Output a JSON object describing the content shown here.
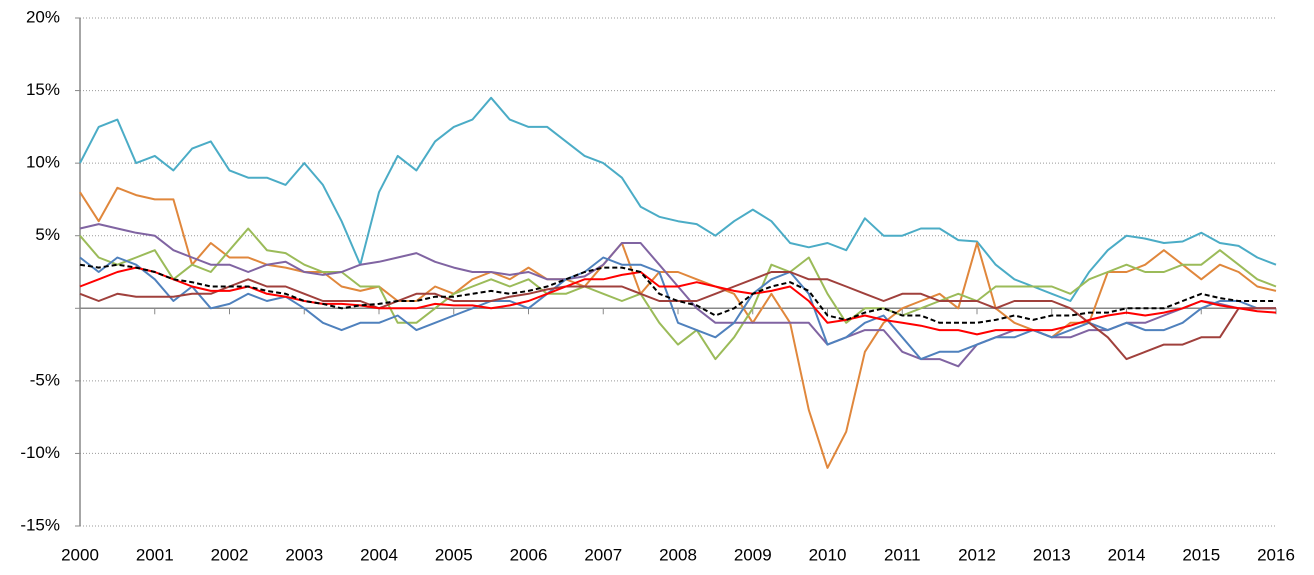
{
  "chart_data": {
    "type": "line",
    "x": [
      2000,
      2000.25,
      2000.5,
      2000.75,
      2001,
      2001.25,
      2001.5,
      2001.75,
      2002,
      2002.25,
      2002.5,
      2002.75,
      2003,
      2003.25,
      2003.5,
      2003.75,
      2004,
      2004.25,
      2004.5,
      2004.75,
      2005,
      2005.25,
      2005.5,
      2005.75,
      2006,
      2006.25,
      2006.5,
      2006.75,
      2007,
      2007.25,
      2007.5,
      2007.75,
      2008,
      2008.25,
      2008.5,
      2008.75,
      2009,
      2009.25,
      2009.5,
      2009.75,
      2010,
      2010.25,
      2010.5,
      2010.75,
      2011,
      2011.25,
      2011.5,
      2011.75,
      2012,
      2012.25,
      2012.5,
      2012.75,
      2013,
      2013.25,
      2013.5,
      2013.75,
      2014,
      2014.25,
      2014.5,
      2014.75,
      2015,
      2015.25,
      2015.5,
      2015.75,
      2016
    ],
    "xlim": [
      2000,
      2016
    ],
    "xticks": [
      2000,
      2001,
      2002,
      2003,
      2004,
      2005,
      2006,
      2007,
      2008,
      2009,
      2010,
      2011,
      2012,
      2013,
      2014,
      2015,
      2016
    ],
    "ylim": [
      -15,
      20
    ],
    "yticks": [
      {
        "value": -15,
        "label": "-15%"
      },
      {
        "value": -10,
        "label": "-10%"
      },
      {
        "value": -5,
        "label": "-5%"
      },
      {
        "value": 0,
        "label": ""
      },
      {
        "value": 5,
        "label": "5%"
      },
      {
        "value": 10,
        "label": "10%"
      },
      {
        "value": 15,
        "label": "15%"
      },
      {
        "value": 20,
        "label": "20%"
      }
    ],
    "grid": true,
    "series": [
      {
        "color": "#4bacc6",
        "values": [
          10,
          12.5,
          13,
          10,
          10.5,
          9.5,
          11,
          11.5,
          9.5,
          9,
          9,
          8.5,
          10,
          8.5,
          6,
          3,
          8,
          10.5,
          9.5,
          11.5,
          12.5,
          13,
          14.5,
          13,
          12.5,
          12.5,
          11.5,
          10.5,
          10,
          9,
          7,
          6.3,
          6,
          5.8,
          5,
          6,
          6.8,
          6,
          4.5,
          4.2,
          4.5,
          4,
          6.2,
          5,
          5,
          5.5,
          5.5,
          4.7,
          4.6,
          3,
          2,
          1.5,
          1,
          0.5,
          2.5,
          4,
          5,
          4.8,
          4.5,
          4.6,
          5.2,
          4.5,
          4.3,
          3.5,
          3
        ]
      },
      {
        "color": "#e0873c",
        "values": [
          8,
          6,
          8.3,
          7.8,
          7.5,
          7.5,
          3,
          4.5,
          3.5,
          3.5,
          3,
          2.8,
          2.5,
          2.5,
          1.5,
          1.2,
          1.5,
          0.5,
          0.5,
          1.5,
          1,
          2,
          2.5,
          2,
          2.8,
          2,
          2,
          1.5,
          3,
          4.5,
          1,
          2.5,
          2.5,
          2,
          1.5,
          1,
          -1,
          1,
          -1,
          -7,
          -11,
          -8.5,
          -3,
          -1,
          0,
          0.5,
          1,
          0,
          4.5,
          0,
          -1,
          -1.5,
          -2,
          -1,
          -1,
          2.5,
          2.5,
          3,
          4,
          3,
          2,
          3,
          2.5,
          1.5,
          1.2
        ]
      },
      {
        "color": "#9bbb59",
        "values": [
          5,
          3.5,
          3,
          3.5,
          4,
          2,
          3,
          2.5,
          4,
          5.5,
          4,
          3.8,
          3,
          2.5,
          2.5,
          1.5,
          1.5,
          -1,
          -1,
          0,
          1,
          1.5,
          2,
          1.5,
          2,
          1,
          1,
          1.5,
          1,
          0.5,
          1,
          -1,
          -2.5,
          -1.5,
          -3.5,
          -2,
          0,
          3,
          2.5,
          3.5,
          1,
          -1,
          0,
          0,
          -0.5,
          0,
          0.5,
          1,
          0.5,
          1.5,
          1.5,
          1.5,
          1.5,
          1,
          2,
          2.5,
          3,
          2.5,
          2.5,
          3,
          3,
          4,
          3,
          2,
          1.5
        ]
      },
      {
        "color": "#8064a2",
        "values": [
          5.5,
          5.8,
          5.5,
          5.2,
          5,
          4,
          3.5,
          3,
          3,
          2.5,
          3,
          3.2,
          2.5,
          2.3,
          2.5,
          3,
          3.2,
          3.5,
          3.8,
          3.2,
          2.8,
          2.5,
          2.5,
          2.3,
          2.5,
          2,
          2,
          2.2,
          3,
          4.5,
          4.5,
          3,
          1.5,
          0,
          -1,
          -1,
          -1,
          -1,
          -1,
          -1,
          -2.5,
          -2,
          -1.5,
          -1.5,
          -3,
          -3.5,
          -3.5,
          -4,
          -2.5,
          -2,
          -1.5,
          -1.5,
          -2,
          -2,
          -1.5,
          -1.5,
          -1,
          -1,
          -0.5,
          0,
          0.5,
          0.3,
          0,
          0,
          0
        ]
      },
      {
        "color": "#4f81bd",
        "values": [
          3.5,
          2.5,
          3.5,
          3,
          2,
          0.5,
          1.5,
          0,
          0.3,
          1,
          0.5,
          0.8,
          0,
          -1,
          -1.5,
          -1,
          -1,
          -0.5,
          -1.5,
          -1,
          -0.5,
          0,
          0.5,
          0.5,
          0,
          1,
          2,
          2.5,
          3.5,
          3,
          3,
          2.5,
          -1,
          -1.5,
          -2,
          -1,
          1,
          2,
          2.5,
          1,
          -2.5,
          -2,
          -1,
          -0.5,
          -2,
          -3.5,
          -3,
          -3,
          -2.5,
          -2,
          -2,
          -1.5,
          -2,
          -1.5,
          -1,
          -1.5,
          -1,
          -1.5,
          -1.5,
          -1,
          0,
          0.5,
          0.5,
          0,
          0
        ]
      },
      {
        "color": "#a0403c",
        "values": [
          1,
          0.5,
          1,
          0.8,
          0.8,
          0.8,
          1,
          1,
          1.5,
          2,
          1.5,
          1.5,
          1,
          0.5,
          0.5,
          0.5,
          0,
          0.5,
          1,
          1,
          0.5,
          0.5,
          0.5,
          0.8,
          1,
          1.3,
          1.5,
          1.5,
          1.5,
          1.5,
          1,
          0.5,
          0.5,
          0.5,
          1,
          1.5,
          2,
          2.5,
          2.5,
          2,
          2,
          1.5,
          1,
          0.5,
          1,
          1,
          0.5,
          0.5,
          0.5,
          0,
          0.5,
          0.5,
          0.5,
          0,
          -1,
          -2,
          -3.5,
          -3,
          -2.5,
          -2.5,
          -2,
          -2,
          0,
          0,
          0
        ]
      },
      {
        "color": "#ff0000",
        "values": [
          1.5,
          2,
          2.5,
          2.8,
          2.5,
          2,
          1.5,
          1.2,
          1.2,
          1.5,
          1,
          0.8,
          0.5,
          0.3,
          0.3,
          0.2,
          0,
          0,
          0,
          0.3,
          0.2,
          0.2,
          0,
          0.2,
          0.5,
          1,
          1.5,
          2,
          2,
          2.3,
          2.5,
          1.5,
          1.5,
          1.8,
          1.5,
          1.2,
          1,
          1.2,
          1.5,
          0.5,
          -1,
          -0.8,
          -0.5,
          -0.8,
          -1,
          -1.2,
          -1.5,
          -1.5,
          -1.8,
          -1.5,
          -1.5,
          -1.5,
          -1.5,
          -1.2,
          -0.8,
          -0.5,
          -0.3,
          -0.5,
          -0.3,
          0,
          0.5,
          0.2,
          0,
          -0.2,
          -0.3
        ]
      },
      {
        "color": "#000000",
        "style": "dashed",
        "values": [
          3,
          2.8,
          3,
          2.8,
          2.5,
          2,
          1.8,
          1.5,
          1.5,
          1.5,
          1.2,
          1,
          0.5,
          0.3,
          0,
          0.2,
          0.3,
          0.5,
          0.5,
          0.8,
          0.8,
          1,
          1.2,
          1,
          1.2,
          1.5,
          2,
          2.5,
          2.8,
          2.8,
          2.5,
          1,
          0.5,
          0.2,
          -0.5,
          0,
          1,
          1.5,
          1.8,
          1.2,
          -0.5,
          -0.8,
          -0.3,
          0,
          -0.5,
          -0.5,
          -1,
          -1,
          -1,
          -0.8,
          -0.5,
          -0.8,
          -0.5,
          -0.5,
          -0.3,
          -0.3,
          0,
          0,
          0,
          0.5,
          1,
          0.7,
          0.5,
          0.5,
          0.5
        ]
      }
    ]
  }
}
